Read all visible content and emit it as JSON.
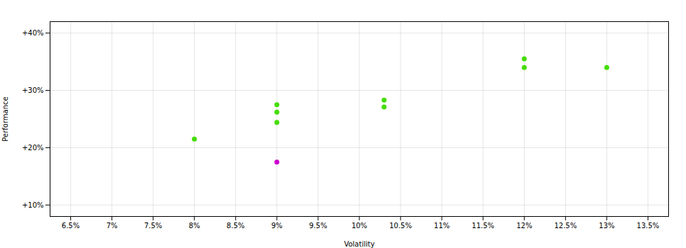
{
  "chart_data": {
    "type": "scatter",
    "xlabel": "Volatility",
    "ylabel": "Performance",
    "xlim": [
      0.0625,
      0.1375
    ],
    "ylim": [
      0.08,
      0.42
    ],
    "xticks": [
      {
        "value": 0.065,
        "label": "6.5%"
      },
      {
        "value": 0.07,
        "label": "7%"
      },
      {
        "value": 0.075,
        "label": "7.5%"
      },
      {
        "value": 0.08,
        "label": "8%"
      },
      {
        "value": 0.085,
        "label": "8.5%"
      },
      {
        "value": 0.09,
        "label": "9%"
      },
      {
        "value": 0.095,
        "label": "9.5%"
      },
      {
        "value": 0.1,
        "label": "10%"
      },
      {
        "value": 0.105,
        "label": "10.5%"
      },
      {
        "value": 0.11,
        "label": "11%"
      },
      {
        "value": 0.115,
        "label": "11.5%"
      },
      {
        "value": 0.12,
        "label": "12%"
      },
      {
        "value": 0.125,
        "label": "12.5%"
      },
      {
        "value": 0.13,
        "label": "13%"
      },
      {
        "value": 0.135,
        "label": "13.5%"
      }
    ],
    "yticks": [
      {
        "value": 0.1,
        "label": "+10%"
      },
      {
        "value": 0.2,
        "label": "+20%"
      },
      {
        "value": 0.3,
        "label": "+30%"
      },
      {
        "value": 0.4,
        "label": "+40%"
      }
    ],
    "grid": true,
    "series": [
      {
        "color": "#44dd00",
        "x": [
          0.08,
          0.09,
          0.09,
          0.09,
          0.103,
          0.103,
          0.12,
          0.12,
          0.13
        ],
        "y": [
          0.215,
          0.275,
          0.262,
          0.244,
          0.283,
          0.271,
          0.355,
          0.34,
          0.34
        ]
      },
      {
        "color": "#cc00cc",
        "x": [
          0.09
        ],
        "y": [
          0.175
        ]
      }
    ]
  }
}
